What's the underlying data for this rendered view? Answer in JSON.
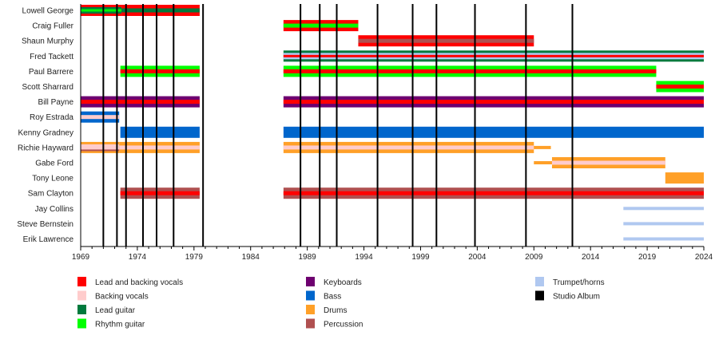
{
  "chart_data": {
    "type": "timeline",
    "xlim": [
      1969,
      2024
    ],
    "ticks": [
      1969,
      1974,
      1979,
      1984,
      1989,
      1994,
      1999,
      2004,
      2009,
      2014,
      2019,
      2024
    ],
    "roles": {
      "lead_vocals": {
        "label": "Lead and backing vocals",
        "color": "#ff0000"
      },
      "backing_vocals": {
        "label": "Backing vocals",
        "color": "#ffcccc"
      },
      "lead_guitar": {
        "label": "Lead guitar",
        "color": "#007a3d"
      },
      "rhythm_guitar": {
        "label": "Rhythm guitar",
        "color": "#00ff00"
      },
      "keyboards": {
        "label": "Keyboards",
        "color": "#6e0070"
      },
      "bass": {
        "label": "Bass",
        "color": "#0066cc"
      },
      "drums": {
        "label": "Drums",
        "color": "#ffa028"
      },
      "percussion": {
        "label": "Percussion",
        "color": "#b05050"
      },
      "trumpet": {
        "label": "Trumpet/horns",
        "color": "#b0c8f0"
      },
      "album": {
        "label": "Studio Album",
        "color": "#000000"
      }
    },
    "legend_columns": [
      [
        "lead_vocals",
        "backing_vocals",
        "lead_guitar",
        "rhythm_guitar"
      ],
      [
        "keyboards",
        "bass",
        "drums",
        "percussion"
      ],
      [
        "trumpet",
        "album"
      ]
    ],
    "albums": [
      1971.0,
      1972.2,
      1973.0,
      1974.5,
      1975.7,
      1977.2,
      1979.8,
      1988.4,
      1990.1,
      1991.6,
      1995.2,
      1998.3,
      2000.4,
      2003.8,
      2008.3,
      2012.4
    ],
    "members": [
      {
        "name": "Lowell George",
        "periods": [
          {
            "from": 1969,
            "to": 1972.6,
            "roles": [
              "lead_vocals",
              "lead_guitar",
              "rhythm_guitar"
            ]
          },
          {
            "from": 1972.6,
            "to": 1979.5,
            "roles": [
              "lead_vocals",
              "lead_guitar"
            ]
          }
        ]
      },
      {
        "name": "Craig Fuller",
        "periods": [
          {
            "from": 1986.9,
            "to": 1993.5,
            "roles": [
              "lead_vocals",
              "rhythm_guitar"
            ]
          }
        ]
      },
      {
        "name": "Shaun Murphy",
        "periods": [
          {
            "from": 1993.5,
            "to": 2009.0,
            "roles": [
              "lead_vocals",
              "percussion"
            ]
          }
        ]
      },
      {
        "name": "Fred Tackett",
        "periods": [
          {
            "from": 1986.9,
            "to": 2024,
            "roles": [
              "lead_guitar",
              "trumpet",
              "lead_vocals"
            ]
          }
        ]
      },
      {
        "name": "Paul Barrere",
        "periods": [
          {
            "from": 1972.5,
            "to": 1979.5,
            "roles": [
              "rhythm_guitar",
              "lead_vocals"
            ]
          },
          {
            "from": 1986.9,
            "to": 2019.8,
            "roles": [
              "rhythm_guitar",
              "lead_vocals"
            ]
          }
        ]
      },
      {
        "name": "Scott Sharrard",
        "periods": [
          {
            "from": 2019.8,
            "to": 2024,
            "roles": [
              "rhythm_guitar",
              "lead_vocals"
            ]
          }
        ]
      },
      {
        "name": "Bill Payne",
        "periods": [
          {
            "from": 1969,
            "to": 1979.5,
            "roles": [
              "keyboards",
              "lead_vocals"
            ]
          },
          {
            "from": 1986.9,
            "to": 2024,
            "roles": [
              "keyboards",
              "lead_vocals"
            ]
          }
        ]
      },
      {
        "name": "Roy Estrada",
        "periods": [
          {
            "from": 1969,
            "to": 1972.4,
            "roles": [
              "bass",
              "backing_vocals"
            ]
          }
        ]
      },
      {
        "name": "Kenny Gradney",
        "periods": [
          {
            "from": 1972.5,
            "to": 1979.5,
            "roles": [
              "bass"
            ]
          },
          {
            "from": 1986.9,
            "to": 2024,
            "roles": [
              "bass"
            ]
          }
        ]
      },
      {
        "name": "Richie Hayward",
        "periods": [
          {
            "from": 1969,
            "to": 1972.4,
            "roles": [
              "drums",
              "backing_vocals",
              "percussion"
            ]
          },
          {
            "from": 1972.4,
            "to": 1979.5,
            "roles": [
              "drums",
              "backing_vocals"
            ]
          },
          {
            "from": 1986.9,
            "to": 2009.0,
            "roles": [
              "drums",
              "backing_vocals"
            ]
          },
          {
            "from": 2009.0,
            "to": 2010.5,
            "roles": [
              "drums"
            ],
            "thin": true
          }
        ]
      },
      {
        "name": "Gabe Ford",
        "periods": [
          {
            "from": 2009.0,
            "to": 2010.6,
            "roles": [
              "drums"
            ],
            "thin": true
          },
          {
            "from": 2010.6,
            "to": 2020.6,
            "roles": [
              "drums",
              "backing_vocals"
            ]
          }
        ]
      },
      {
        "name": "Tony Leone",
        "periods": [
          {
            "from": 2020.6,
            "to": 2024,
            "roles": [
              "drums"
            ]
          }
        ]
      },
      {
        "name": "Sam Clayton",
        "periods": [
          {
            "from": 1972.5,
            "to": 1979.5,
            "roles": [
              "percussion",
              "lead_vocals"
            ]
          },
          {
            "from": 1986.9,
            "to": 2024,
            "roles": [
              "percussion",
              "lead_vocals"
            ]
          }
        ]
      },
      {
        "name": "Jay Collins",
        "periods": [
          {
            "from": 2016.9,
            "to": 2024,
            "roles": [
              "trumpet"
            ],
            "thin": true
          }
        ]
      },
      {
        "name": "Steve Bernstein",
        "periods": [
          {
            "from": 2016.9,
            "to": 2024,
            "roles": [
              "trumpet"
            ],
            "thin": true
          }
        ]
      },
      {
        "name": "Erik Lawrence",
        "periods": [
          {
            "from": 2016.9,
            "to": 2024,
            "roles": [
              "trumpet"
            ],
            "thin": true
          }
        ]
      }
    ]
  }
}
